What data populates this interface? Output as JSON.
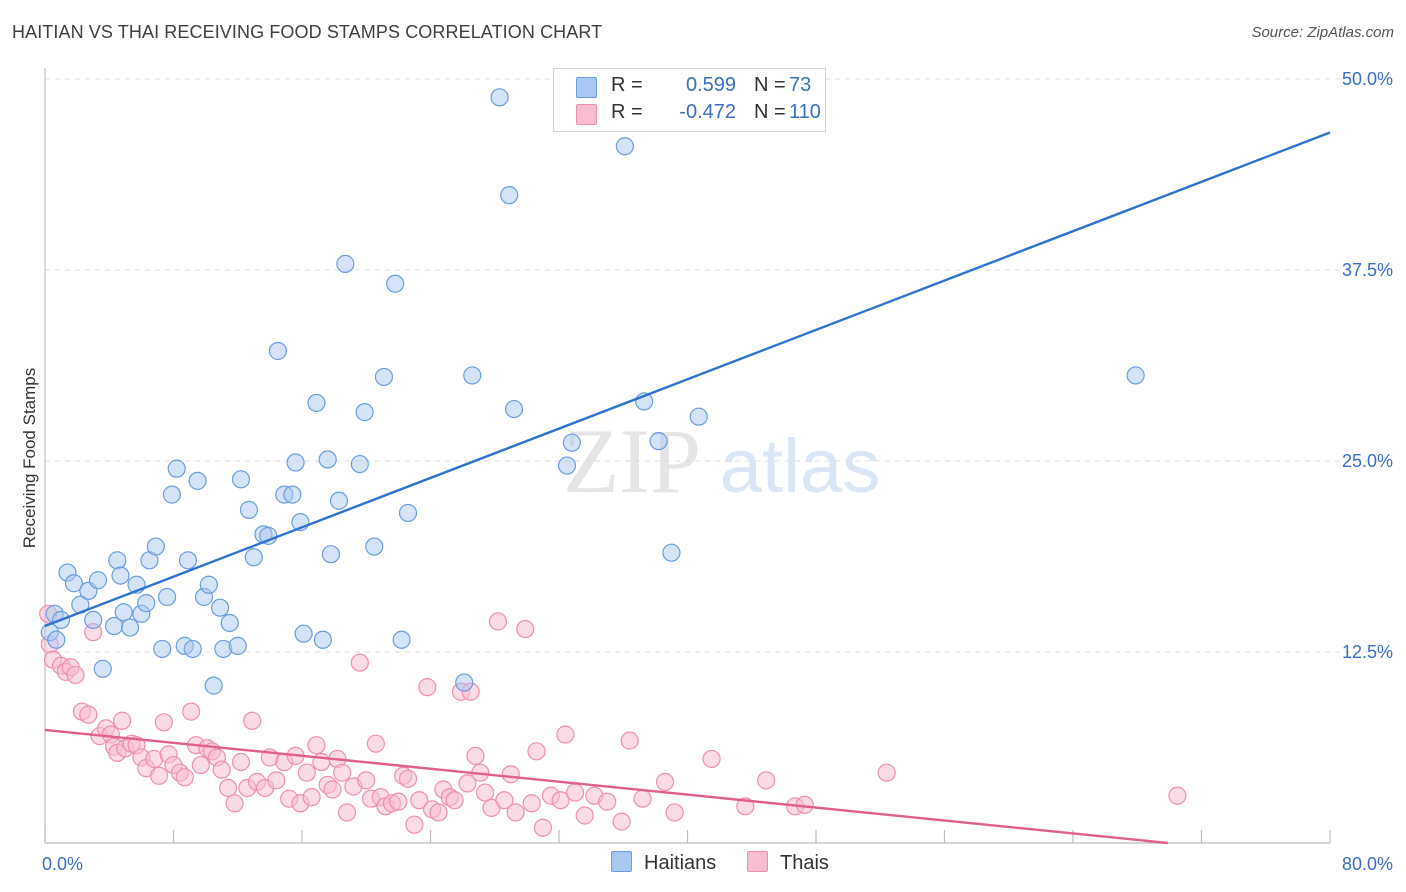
{
  "header": {
    "title": "HAITIAN VS THAI RECEIVING FOOD STAMPS CORRELATION CHART",
    "source": "Source: ZipAtlas.com"
  },
  "watermark": {
    "zip": "ZIP",
    "atlas": "atlas"
  },
  "legend": {
    "haitians": {
      "r_label": "R =",
      "r_value": "0.599",
      "n_label": "N =",
      "n_value": "73"
    },
    "thais": {
      "r_label": "R =",
      "r_value": "-0.472",
      "n_label": "N =",
      "n_value": "110"
    }
  },
  "bottom_legend": {
    "haitians": "Haitians",
    "thais": "Thais"
  },
  "colors": {
    "haitians_fill": "#a9c8f0",
    "haitians_stroke": "#6b9de0",
    "haitians_line": "#2f72d0",
    "thais_fill": "#f7bdd0",
    "thais_stroke": "#ee8fb0",
    "thais_line": "#e0608c",
    "axis_label": "#3a6fc4",
    "grid": "#dddddd"
  },
  "chart_data": {
    "type": "scatter",
    "title": "HAITIAN VS THAI RECEIVING FOOD STAMPS CORRELATION CHART",
    "xlabel": "",
    "ylabel": "Receiving Food Stamps",
    "xlim": [
      0,
      80
    ],
    "ylim": [
      0,
      50
    ],
    "x_tick_labels": [
      {
        "value": 0,
        "label": "0.0%"
      },
      {
        "value": 80,
        "label": "80.0%"
      }
    ],
    "y_ticks": [
      {
        "value": 12.5,
        "label": "12.5%"
      },
      {
        "value": 25.0,
        "label": "25.0%"
      },
      {
        "value": 37.5,
        "label": "37.5%"
      },
      {
        "value": 50.0,
        "label": "50.0%"
      }
    ],
    "series": [
      {
        "name": "Haitians",
        "r": 0.599,
        "n": 73,
        "trend": {
          "x": [
            0,
            80
          ],
          "y": [
            14.2,
            46.5
          ]
        },
        "points": [
          [
            0.3,
            13.8
          ],
          [
            0.6,
            15.0
          ],
          [
            0.7,
            13.3
          ],
          [
            1.0,
            14.6
          ],
          [
            1.4,
            17.7
          ],
          [
            1.8,
            17.0
          ],
          [
            2.2,
            15.6
          ],
          [
            2.7,
            16.5
          ],
          [
            3.0,
            14.6
          ],
          [
            3.3,
            17.2
          ],
          [
            3.6,
            11.4
          ],
          [
            4.3,
            14.2
          ],
          [
            4.5,
            18.5
          ],
          [
            4.7,
            17.5
          ],
          [
            4.9,
            15.1
          ],
          [
            5.3,
            14.1
          ],
          [
            5.7,
            16.9
          ],
          [
            6.0,
            15.0
          ],
          [
            6.3,
            15.7
          ],
          [
            6.5,
            18.5
          ],
          [
            6.9,
            19.4
          ],
          [
            7.3,
            12.7
          ],
          [
            7.6,
            16.1
          ],
          [
            7.9,
            22.8
          ],
          [
            8.2,
            24.5
          ],
          [
            8.7,
            12.9
          ],
          [
            8.9,
            18.5
          ],
          [
            9.2,
            12.7
          ],
          [
            9.5,
            23.7
          ],
          [
            9.9,
            16.1
          ],
          [
            10.2,
            16.9
          ],
          [
            10.5,
            10.3
          ],
          [
            10.9,
            15.4
          ],
          [
            11.1,
            12.7
          ],
          [
            11.5,
            14.4
          ],
          [
            12.0,
            12.9
          ],
          [
            12.2,
            23.8
          ],
          [
            12.7,
            21.8
          ],
          [
            13.0,
            18.7
          ],
          [
            13.6,
            20.2
          ],
          [
            13.9,
            20.1
          ],
          [
            14.5,
            32.2
          ],
          [
            14.9,
            22.8
          ],
          [
            15.4,
            22.8
          ],
          [
            15.6,
            24.9
          ],
          [
            15.9,
            21.0
          ],
          [
            16.1,
            13.7
          ],
          [
            16.9,
            28.8
          ],
          [
            17.3,
            13.3
          ],
          [
            17.6,
            25.1
          ],
          [
            17.8,
            18.9
          ],
          [
            18.3,
            22.4
          ],
          [
            18.7,
            37.9
          ],
          [
            19.6,
            24.8
          ],
          [
            19.9,
            28.2
          ],
          [
            20.5,
            19.4
          ],
          [
            21.1,
            30.5
          ],
          [
            21.8,
            36.6
          ],
          [
            22.2,
            13.3
          ],
          [
            22.6,
            21.6
          ],
          [
            26.1,
            10.5
          ],
          [
            26.6,
            30.6
          ],
          [
            28.3,
            48.8
          ],
          [
            28.9,
            42.4
          ],
          [
            29.2,
            28.4
          ],
          [
            32.5,
            24.7
          ],
          [
            32.8,
            26.2
          ],
          [
            36.1,
            45.6
          ],
          [
            37.3,
            28.9
          ],
          [
            38.2,
            26.3
          ],
          [
            39.0,
            19.0
          ],
          [
            40.7,
            27.9
          ],
          [
            67.9,
            30.6
          ]
        ]
      },
      {
        "name": "Thais",
        "r": -0.472,
        "n": 110,
        "trend": {
          "x": [
            0,
            69.9
          ],
          "y": [
            7.4,
            0.0
          ]
        },
        "points": [
          [
            0.2,
            15.0
          ],
          [
            0.3,
            13.0
          ],
          [
            0.5,
            12.0
          ],
          [
            1.0,
            11.6
          ],
          [
            1.3,
            11.2
          ],
          [
            1.6,
            11.5
          ],
          [
            1.9,
            11.0
          ],
          [
            2.3,
            8.6
          ],
          [
            2.7,
            8.4
          ],
          [
            3.0,
            13.8
          ],
          [
            3.4,
            7.0
          ],
          [
            3.8,
            7.5
          ],
          [
            4.1,
            7.1
          ],
          [
            4.3,
            6.3
          ],
          [
            4.5,
            5.9
          ],
          [
            4.8,
            8.0
          ],
          [
            5.0,
            6.2
          ],
          [
            5.4,
            6.5
          ],
          [
            5.7,
            6.4
          ],
          [
            6.0,
            5.6
          ],
          [
            6.3,
            4.9
          ],
          [
            6.8,
            5.5
          ],
          [
            7.1,
            4.4
          ],
          [
            7.4,
            7.9
          ],
          [
            7.7,
            5.8
          ],
          [
            8.0,
            5.1
          ],
          [
            8.4,
            4.6
          ],
          [
            8.7,
            4.3
          ],
          [
            9.1,
            8.6
          ],
          [
            9.4,
            6.4
          ],
          [
            9.7,
            5.1
          ],
          [
            10.1,
            6.2
          ],
          [
            10.4,
            6.0
          ],
          [
            10.7,
            5.6
          ],
          [
            11.0,
            4.8
          ],
          [
            11.4,
            3.6
          ],
          [
            11.8,
            2.6
          ],
          [
            12.2,
            5.3
          ],
          [
            12.6,
            3.6
          ],
          [
            12.9,
            8.0
          ],
          [
            13.2,
            4.0
          ],
          [
            13.7,
            3.6
          ],
          [
            14.0,
            5.6
          ],
          [
            14.4,
            4.1
          ],
          [
            14.9,
            5.3
          ],
          [
            15.2,
            2.9
          ],
          [
            15.6,
            5.7
          ],
          [
            15.9,
            2.6
          ],
          [
            16.3,
            4.6
          ],
          [
            16.6,
            3.0
          ],
          [
            16.9,
            6.4
          ],
          [
            17.2,
            5.3
          ],
          [
            17.6,
            3.8
          ],
          [
            17.9,
            3.5
          ],
          [
            18.2,
            5.5
          ],
          [
            18.5,
            4.6
          ],
          [
            18.8,
            2.0
          ],
          [
            19.2,
            3.7
          ],
          [
            19.6,
            11.8
          ],
          [
            20.0,
            4.1
          ],
          [
            20.3,
            2.9
          ],
          [
            20.6,
            6.5
          ],
          [
            20.9,
            3.0
          ],
          [
            21.2,
            2.4
          ],
          [
            21.6,
            2.6
          ],
          [
            22.0,
            2.7
          ],
          [
            22.3,
            4.4
          ],
          [
            22.6,
            4.2
          ],
          [
            23.0,
            1.2
          ],
          [
            23.3,
            2.8
          ],
          [
            23.8,
            10.2
          ],
          [
            24.1,
            2.2
          ],
          [
            24.5,
            2.0
          ],
          [
            24.8,
            3.5
          ],
          [
            25.2,
            3.0
          ],
          [
            25.5,
            2.8
          ],
          [
            25.9,
            9.9
          ],
          [
            26.3,
            3.9
          ],
          [
            26.5,
            9.9
          ],
          [
            26.8,
            5.7
          ],
          [
            27.1,
            4.6
          ],
          [
            27.4,
            3.3
          ],
          [
            27.8,
            2.3
          ],
          [
            28.2,
            14.5
          ],
          [
            28.6,
            2.8
          ],
          [
            29.0,
            4.5
          ],
          [
            29.3,
            2.0
          ],
          [
            29.9,
            14.0
          ],
          [
            30.3,
            2.6
          ],
          [
            30.6,
            6.0
          ],
          [
            31.0,
            1.0
          ],
          [
            31.5,
            3.1
          ],
          [
            32.1,
            2.8
          ],
          [
            32.4,
            7.1
          ],
          [
            33.0,
            3.3
          ],
          [
            33.6,
            1.8
          ],
          [
            34.2,
            3.1
          ],
          [
            35.0,
            2.7
          ],
          [
            35.9,
            1.4
          ],
          [
            36.4,
            6.7
          ],
          [
            37.2,
            2.9
          ],
          [
            38.6,
            4.0
          ],
          [
            39.2,
            2.0
          ],
          [
            41.5,
            5.5
          ],
          [
            43.6,
            2.4
          ],
          [
            44.9,
            4.1
          ],
          [
            46.7,
            2.4
          ],
          [
            47.3,
            2.5
          ],
          [
            52.4,
            4.6
          ],
          [
            70.5,
            3.1
          ]
        ]
      }
    ]
  }
}
